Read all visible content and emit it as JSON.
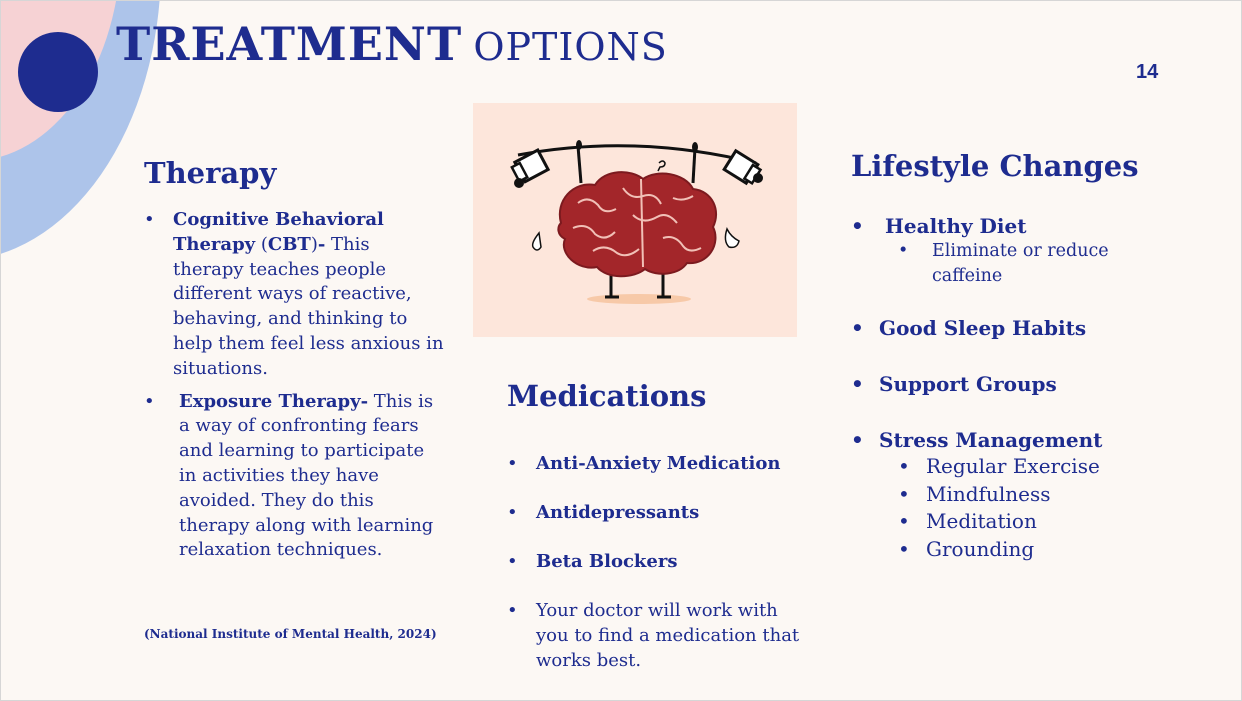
{
  "slide": {
    "title_main": "TREATMENT",
    "title_rest": "OPTIONS",
    "page_number": "14"
  },
  "therapy": {
    "heading": "Therapy",
    "items": [
      {
        "bold_1": "Cognitive Behavioral Therapy",
        "plain_1": " (",
        "bold_2": "CBT",
        "plain_2": ")",
        "bold_3": "-",
        "text": " This therapy teaches people different ways of reactive, behaving, and thinking to help them feel less anxious in situations."
      },
      {
        "bold": "Exposure Therapy-",
        "text": " This is a way of confronting fears and learning to participate in activities they have avoided. They do this therapy along with learning relaxation techniques."
      }
    ],
    "citation": "(National Institute of Mental Health, 2024)"
  },
  "illustration": {
    "icon": "weightlifting-brain-illustration"
  },
  "medications": {
    "heading": "Medications",
    "items": [
      "Anti-Anxiety Medication",
      "Antidepressants",
      "Beta Blockers",
      "Your doctor will work with you to find a medication that works best."
    ]
  },
  "lifestyle": {
    "heading": "Lifestyle Changes",
    "items": [
      {
        "label": "Healthy Diet",
        "sub": [
          "Eliminate or reduce caffeine"
        ]
      },
      {
        "label": "Good Sleep Habits"
      },
      {
        "label": "Support Groups"
      },
      {
        "label": "Stress Management",
        "sub": [
          "Regular Exercise",
          "Mindfulness",
          "Meditation",
          "Grounding"
        ]
      }
    ]
  },
  "colors": {
    "navy": "#1e2c8f",
    "background": "#fcf8f4",
    "pink": "#f6d2d4",
    "light_blue": "#adc4ea",
    "peach": "#fde6db",
    "brain_red": "#a3262a"
  }
}
